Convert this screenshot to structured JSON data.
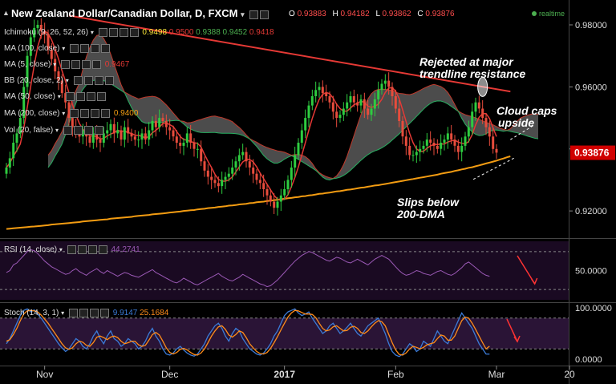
{
  "header": {
    "title": "New Zealand Dollar/Canadian Dollar, D, FXCM",
    "o_label": "O",
    "o_value": "0.93883",
    "h_label": "H",
    "h_value": "0.94182",
    "l_label": "L",
    "l_value": "0.93862",
    "c_label": "C",
    "c_value": "0.93876",
    "realtime": "realtime"
  },
  "indicators": [
    {
      "label": "Ichimoku (9, 26, 52, 26)",
      "values": [
        "0.9498",
        "0.9500",
        "0.9388",
        "0.9452",
        "0.9418"
      ]
    },
    {
      "label": "MA (100, close)",
      "values": []
    },
    {
      "label": "MA (5, close)",
      "values": [
        "0.9467"
      ]
    },
    {
      "label": "BB (20, close, 2)",
      "values": []
    },
    {
      "label": "MA (50, close)",
      "values": []
    },
    {
      "label": "MA (200, close)",
      "values": [
        "0.9400"
      ]
    },
    {
      "label": "Vol (20, false)",
      "values": []
    }
  ],
  "annotations": {
    "rejected": [
      "Rejected at major",
      "trendline resistance"
    ],
    "cloud": [
      "Cloud caps",
      "upside"
    ],
    "slips": [
      "Slips below",
      "200-DMA"
    ]
  },
  "rsi": {
    "label": "RSI (14, close)",
    "value": "44.2741"
  },
  "stoch": {
    "label": "Stoch (14, 3, 1)",
    "k": "9.9147",
    "d": "25.1684"
  },
  "colors": {
    "up": "#2ecc40",
    "down": "#e74c3c",
    "ma200": "#f39c12",
    "ma5": "#e53935",
    "trendline": "#e53935",
    "cloud": "#666666",
    "rsi": "#9b59b6",
    "stochK": "#3b7bd8",
    "stochD": "#ff8c1a",
    "last_price_bg": "#d00000"
  },
  "chart_data": [
    {
      "type": "candlestick",
      "title": "New Zealand Dollar/Canadian Dollar, D, FXCM",
      "y_ticks": [
        "0.98000",
        "0.96000",
        "0.94000",
        "0.92000"
      ],
      "y_tick_values": [
        0.98,
        0.96,
        0.94,
        0.92
      ],
      "ylim": [
        0.9115,
        0.9875
      ],
      "last_price": "0.93876",
      "last_price_value": 0.93876,
      "x_tick_labels": [
        "Nov",
        "Dec",
        "2017",
        "Feb",
        "Mar",
        "20"
      ],
      "x_tick_index": [
        11,
        47,
        80,
        112,
        141,
        162
      ],
      "close": [
        0.934,
        0.937,
        0.942,
        0.945,
        0.95,
        0.96,
        0.97,
        0.976,
        0.979,
        0.98,
        0.978,
        0.977,
        0.972,
        0.969,
        0.965,
        0.962,
        0.958,
        0.955,
        0.95,
        0.947,
        0.945,
        0.944,
        0.946,
        0.944,
        0.942,
        0.945,
        0.943,
        0.942,
        0.945,
        0.946,
        0.948,
        0.945,
        0.946,
        0.943,
        0.947,
        0.945,
        0.944,
        0.943,
        0.943,
        0.945,
        0.943,
        0.946,
        0.949,
        0.947,
        0.95,
        0.949,
        0.947,
        0.946,
        0.944,
        0.942,
        0.941,
        0.942,
        0.945,
        0.942,
        0.94,
        0.94,
        0.936,
        0.933,
        0.931,
        0.93,
        0.929,
        0.928,
        0.93,
        0.931,
        0.932,
        0.934,
        0.936,
        0.938,
        0.939,
        0.936,
        0.934,
        0.932,
        0.93,
        0.929,
        0.927,
        0.925,
        0.923,
        0.921,
        0.923,
        0.925,
        0.927,
        0.93,
        0.934,
        0.938,
        0.942,
        0.946,
        0.95,
        0.954,
        0.957,
        0.959,
        0.96,
        0.958,
        0.957,
        0.955,
        0.952,
        0.95,
        0.951,
        0.953,
        0.955,
        0.957,
        0.955,
        0.954,
        0.956,
        0.953,
        0.951,
        0.953,
        0.956,
        0.959,
        0.961,
        0.962,
        0.96,
        0.957,
        0.953,
        0.949,
        0.944,
        0.941,
        0.938,
        0.938,
        0.939,
        0.94,
        0.941,
        0.943,
        0.942,
        0.941,
        0.94,
        0.942,
        0.943,
        0.945,
        0.943,
        0.941,
        0.939,
        0.941,
        0.944,
        0.947,
        0.952,
        0.955,
        0.953,
        0.95,
        0.947,
        0.944,
        0.94,
        0.9388
      ],
      "ma200": [
        0.9142,
        0.9143,
        0.9144,
        0.9145,
        0.9146,
        0.9147,
        0.9148,
        0.9149,
        0.915,
        0.9151,
        0.9152,
        0.9153,
        0.9154,
        0.9156,
        0.9157,
        0.9158,
        0.9159,
        0.916,
        0.9161,
        0.9162,
        0.9163,
        0.9164,
        0.9166,
        0.9167,
        0.9168,
        0.9169,
        0.917,
        0.9171,
        0.9172,
        0.9173,
        0.9175,
        0.9176,
        0.9177,
        0.9178,
        0.9179,
        0.918,
        0.9181,
        0.9183,
        0.9184,
        0.9185,
        0.9186,
        0.9187,
        0.9189,
        0.919,
        0.9191,
        0.9192,
        0.9193,
        0.9195,
        0.9196,
        0.9197,
        0.9198,
        0.92,
        0.9201,
        0.9202,
        0.9203,
        0.9205,
        0.9206,
        0.9207,
        0.9209,
        0.921,
        0.9211,
        0.9213,
        0.9214,
        0.9215,
        0.9217,
        0.9218,
        0.9219,
        0.9221,
        0.9222,
        0.9223,
        0.9225,
        0.9226,
        0.9228,
        0.9229,
        0.923,
        0.9232,
        0.9233,
        0.9235,
        0.9236,
        0.9238,
        0.9239,
        0.9241,
        0.9242,
        0.9244,
        0.9245,
        0.9247,
        0.9248,
        0.925,
        0.9251,
        0.9253,
        0.9255,
        0.9256,
        0.9258,
        0.9259,
        0.9261,
        0.9263,
        0.9264,
        0.9266,
        0.9268,
        0.9269,
        0.9271,
        0.9273,
        0.9275,
        0.9276,
        0.9278,
        0.928,
        0.9282,
        0.9283,
        0.9285,
        0.9287,
        0.9289,
        0.9291,
        0.9293,
        0.9295,
        0.9297,
        0.9299,
        0.9301,
        0.9303,
        0.9305,
        0.9307,
        0.9309,
        0.9311,
        0.9313,
        0.9315,
        0.9317,
        0.932,
        0.9322,
        0.9324,
        0.9326,
        0.9329,
        0.9331,
        0.9334,
        0.9336,
        0.9339,
        0.9341,
        0.9344,
        0.9347,
        0.935,
        0.9353,
        0.9356,
        0.9359,
        0.9362,
        0.9366,
        0.9369,
        0.9373,
        0.9376
      ]
    },
    {
      "type": "line",
      "title": "RSI (14, close)",
      "last_value": 44.2741,
      "y_ticks": [
        "50.0000"
      ],
      "levels": [
        70,
        30
      ],
      "ylim": [
        20,
        80
      ],
      "values": [
        48,
        50,
        56,
        58,
        62,
        66,
        70,
        72,
        71,
        68,
        64,
        60,
        57,
        54,
        52,
        50,
        48,
        46,
        47,
        50,
        52,
        49,
        47,
        45,
        48,
        50,
        52,
        49,
        47,
        50,
        48,
        46,
        44,
        46,
        48,
        47,
        45,
        44,
        43,
        45,
        47,
        49,
        51,
        48,
        46,
        44,
        42,
        40,
        38,
        37,
        39,
        42,
        40,
        38,
        36,
        35,
        37,
        39,
        41,
        43,
        45,
        47,
        44,
        42,
        40,
        39,
        41,
        43,
        46,
        44,
        42,
        40,
        38,
        36,
        35,
        33,
        34,
        37,
        40,
        44,
        48,
        52,
        56,
        60,
        63,
        66,
        68,
        70,
        69,
        67,
        65,
        63,
        61,
        60,
        62,
        64,
        63,
        61,
        59,
        58,
        60,
        62,
        60,
        58,
        56,
        59,
        62,
        64,
        66,
        64,
        62,
        58,
        54,
        50,
        47,
        45,
        46,
        48,
        50,
        49,
        47,
        46,
        45,
        47,
        49,
        50,
        48,
        46,
        45,
        47,
        50,
        53,
        57,
        59,
        56,
        53,
        50,
        47,
        45,
        44
      ]
    },
    {
      "type": "line",
      "title": "Stoch (14, 3, 1)",
      "y_ticks": [
        "100.0000",
        "0.0000"
      ],
      "levels": [
        80,
        20
      ],
      "ylim": [
        0,
        100
      ],
      "series": [
        {
          "name": "%K",
          "last_value": 9.9147,
          "values": [
            30,
            40,
            55,
            70,
            85,
            95,
            98,
            92,
            96,
            88,
            80,
            70,
            60,
            50,
            40,
            30,
            22,
            15,
            20,
            30,
            40,
            35,
            25,
            20,
            30,
            45,
            55,
            40,
            30,
            45,
            55,
            40,
            35,
            25,
            30,
            40,
            35,
            30,
            20,
            25,
            35,
            50,
            60,
            45,
            35,
            20,
            10,
            8,
            12,
            20,
            25,
            18,
            12,
            8,
            6,
            10,
            20,
            30,
            45,
            55,
            65,
            70,
            60,
            45,
            35,
            50,
            60,
            55,
            40,
            30,
            20,
            15,
            10,
            8,
            12,
            20,
            30,
            45,
            55,
            70,
            85,
            92,
            95,
            98,
            90,
            85,
            88,
            92,
            80,
            70,
            60,
            50,
            55,
            65,
            70,
            60,
            50,
            55,
            62,
            70,
            60,
            50,
            45,
            55,
            65,
            70,
            75,
            80,
            65,
            50,
            30,
            15,
            8,
            5,
            10,
            20,
            30,
            25,
            15,
            20,
            35,
            30,
            25,
            40,
            55,
            45,
            35,
            30,
            45,
            60,
            75,
            90,
            80,
            70,
            60,
            45,
            30,
            20,
            10,
            9.9
          ]
        },
        {
          "name": "%D",
          "last_value": 25.1684,
          "values": [
            35,
            38,
            48,
            60,
            75,
            88,
            94,
            95,
            94,
            92,
            86,
            78,
            70,
            60,
            50,
            40,
            30,
            22,
            19,
            22,
            30,
            35,
            33,
            27,
            25,
            32,
            43,
            45,
            42,
            38,
            43,
            45,
            42,
            35,
            30,
            32,
            35,
            35,
            28,
            25,
            27,
            37,
            48,
            52,
            47,
            35,
            22,
            13,
            10,
            13,
            19,
            21,
            18,
            13,
            9,
            8,
            12,
            20,
            32,
            45,
            55,
            63,
            65,
            58,
            47,
            43,
            48,
            55,
            52,
            42,
            30,
            22,
            15,
            11,
            10,
            13,
            21,
            32,
            44,
            57,
            70,
            82,
            90,
            95,
            94,
            91,
            88,
            88,
            87,
            81,
            70,
            60,
            55,
            57,
            63,
            65,
            60,
            55,
            56,
            62,
            64,
            60,
            52,
            50,
            55,
            63,
            70,
            75,
            73,
            65,
            48,
            32,
            18,
            9,
            8,
            12,
            20,
            25,
            23,
            20,
            23,
            28,
            30,
            32,
            40,
            47,
            45,
            37,
            37,
            45,
            60,
            75,
            82,
            80,
            70,
            58,
            45,
            32,
            20,
            25.2
          ]
        }
      ]
    }
  ]
}
